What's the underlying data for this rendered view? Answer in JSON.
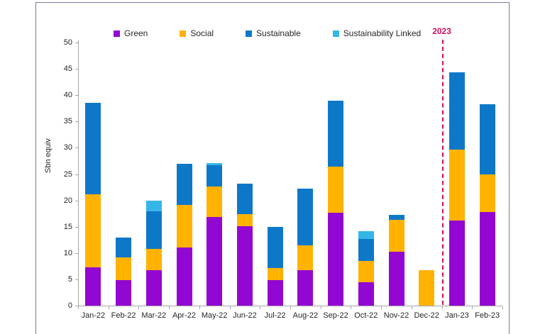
{
  "figure": {
    "y_axis_label": "Sbn equiv",
    "year_annotation": "2023"
  },
  "legend": [
    {
      "label": "Green",
      "color": "#9208D2"
    },
    {
      "label": "Social",
      "color": "#FFB300"
    },
    {
      "label": "Sustainable",
      "color": "#0E78C8"
    },
    {
      "label": "Sustainability Linked",
      "color": "#35B6E9"
    }
  ],
  "colors": {
    "green": "#9208D2",
    "social": "#FFB300",
    "sustainable": "#0E78C8",
    "sustainability_linked": "#35B6E9",
    "annotation": "#D40F5C",
    "axis": "#a6a6a6",
    "frame_border": "#85749B",
    "text": "#262626"
  },
  "chart_data": {
    "type": "bar",
    "stacked": true,
    "title": "",
    "xlabel": "",
    "ylabel": "Sbn equiv",
    "ylim": [
      0,
      50
    ],
    "ytick_step": 5,
    "grid": false,
    "legend_position": "top",
    "categories": [
      "Jan-22",
      "Feb-22",
      "Mar-22",
      "Apr-22",
      "May-22",
      "Jun-22",
      "Jul-22",
      "Aug-22",
      "Sep-22",
      "Oct-22",
      "Nov-22",
      "Dec-22",
      "Jan-23",
      "Feb-23"
    ],
    "series": [
      {
        "name": "Green",
        "color": "#9208D2",
        "values": [
          7.3,
          4.9,
          6.8,
          11.0,
          16.9,
          15.1,
          4.8,
          6.7,
          17.6,
          4.4,
          10.3,
          0,
          16.2,
          17.8
        ]
      },
      {
        "name": "Social",
        "color": "#FFB300",
        "values": [
          13.8,
          4.2,
          4.0,
          8.2,
          5.8,
          2.3,
          2.4,
          4.7,
          8.8,
          4.1,
          6.0,
          6.8,
          13.4,
          7.1
        ]
      },
      {
        "name": "Sustainable",
        "color": "#0E78C8",
        "values": [
          17.4,
          3.9,
          7.1,
          7.8,
          4.0,
          5.8,
          7.8,
          10.8,
          12.5,
          4.2,
          0.9,
          0,
          14.8,
          13.4
        ]
      },
      {
        "name": "Sustainability Linked",
        "color": "#35B6E9",
        "values": [
          0,
          0,
          2.1,
          0,
          0.4,
          0,
          0,
          0,
          0,
          1.5,
          0,
          0,
          0,
          0
        ]
      }
    ],
    "totals": [
      38.5,
      13.0,
      20.0,
      27.0,
      27.1,
      23.2,
      15.0,
      22.2,
      38.9,
      14.2,
      17.2,
      6.8,
      44.4,
      38.3
    ],
    "annotations": [
      {
        "text": "2023",
        "color": "#D40F5C",
        "style": "dashed-vertical-line",
        "position": "between Dec-22 and Jan-23"
      }
    ]
  }
}
